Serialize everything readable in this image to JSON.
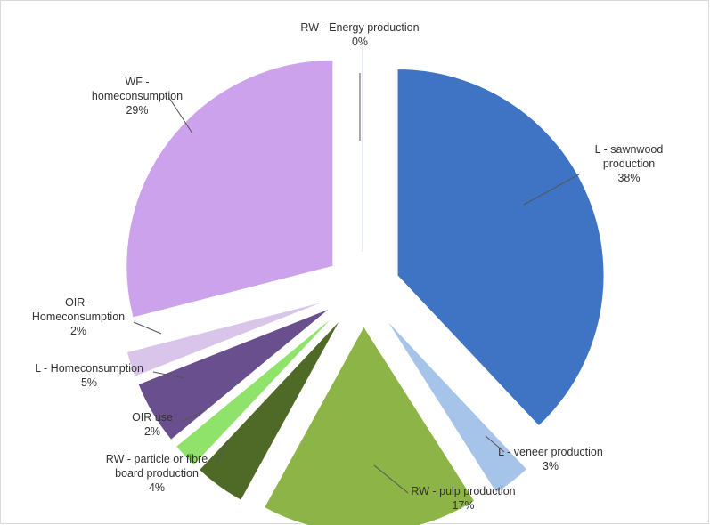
{
  "chart_data": {
    "type": "pie",
    "exploded": true,
    "slices": [
      {
        "name": "RW - Energy production",
        "label_lines": [
          "RW - Energy production"
        ],
        "value": 0,
        "percent_label": "0%",
        "color": "#e8ecf4"
      },
      {
        "name": "L - sawnwood production",
        "label_lines": [
          "L  - sawnwood",
          "production"
        ],
        "value": 38,
        "percent_label": "38%",
        "color": "#3f74c4"
      },
      {
        "name": "L - veneer production",
        "label_lines": [
          "L - veneer production"
        ],
        "value": 3,
        "percent_label": "3%",
        "color": "#a6c3ea"
      },
      {
        "name": "RW - pulp production",
        "label_lines": [
          "RW - pulp production"
        ],
        "value": 17,
        "percent_label": "17%",
        "color": "#8db446"
      },
      {
        "name": "RW - particle or fibre board production",
        "label_lines": [
          "RW - particle or fibre",
          "board production"
        ],
        "value": 4,
        "percent_label": "4%",
        "color": "#4e6a26"
      },
      {
        "name": "OIR use",
        "label_lines": [
          "OIR use"
        ],
        "value": 2,
        "percent_label": "2%",
        "color": "#8fe36a"
      },
      {
        "name": "L - Homeconsumption",
        "label_lines": [
          "L - Homeconsumption"
        ],
        "value": 5,
        "percent_label": "5%",
        "color": "#6a4f8e"
      },
      {
        "name": "OIR - Homeconsumption",
        "label_lines": [
          "OIR -",
          "Homeconsumption"
        ],
        "value": 2,
        "percent_label": "2%",
        "color": "#d9c4ea"
      },
      {
        "name": "WF - homeconsumption",
        "label_lines": [
          "WF -",
          "homeconsumption"
        ],
        "value": 29,
        "percent_label": "29%",
        "color": "#cda2ec"
      }
    ]
  }
}
